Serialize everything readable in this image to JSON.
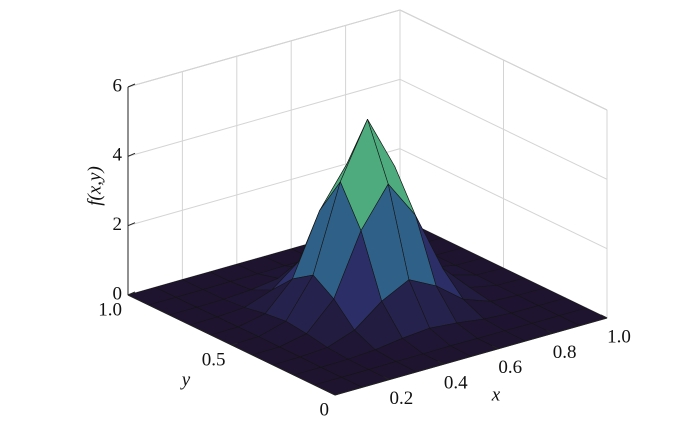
{
  "chart_data": {
    "type": "surface",
    "xlabel": "x",
    "ylabel": "y",
    "zlabel": "f(x,y)",
    "x": [
      0,
      0.1,
      0.2,
      0.3,
      0.4,
      0.5,
      0.6,
      0.7,
      0.8,
      0.9,
      1
    ],
    "y": [
      0,
      0.1,
      0.2,
      0.3,
      0.4,
      0.5,
      0.6,
      0.7,
      0.8,
      0.9,
      1
    ],
    "z": [
      [
        0,
        0,
        0,
        0,
        0,
        0,
        0,
        0,
        0,
        0,
        0
      ],
      [
        0,
        0,
        0,
        0.01,
        0.01,
        0.02,
        0.01,
        0.01,
        0,
        0,
        0
      ],
      [
        0,
        0,
        0.01,
        0.06,
        0.17,
        0.24,
        0.17,
        0.06,
        0.01,
        0,
        0
      ],
      [
        0,
        0.01,
        0.06,
        0.34,
        0.95,
        1.35,
        0.95,
        0.34,
        0.06,
        0.01,
        0
      ],
      [
        0,
        0.01,
        0.17,
        0.95,
        2.7,
        3.82,
        2.7,
        0.95,
        0.17,
        0.01,
        0
      ],
      [
        0,
        0.02,
        0.24,
        1.35,
        3.82,
        5.4,
        3.82,
        1.35,
        0.24,
        0.02,
        0
      ],
      [
        0,
        0.01,
        0.17,
        0.95,
        2.7,
        3.82,
        2.7,
        0.95,
        0.17,
        0.01,
        0
      ],
      [
        0,
        0.01,
        0.06,
        0.34,
        0.95,
        1.35,
        0.95,
        0.34,
        0.06,
        0.01,
        0
      ],
      [
        0,
        0,
        0.01,
        0.06,
        0.17,
        0.24,
        0.17,
        0.06,
        0.01,
        0,
        0
      ],
      [
        0,
        0,
        0,
        0.01,
        0.01,
        0.02,
        0.01,
        0.01,
        0,
        0,
        0
      ],
      [
        0,
        0,
        0,
        0,
        0,
        0,
        0,
        0,
        0,
        0,
        0
      ]
    ],
    "xlim": [
      0,
      1
    ],
    "ylim": [
      0,
      1
    ],
    "zlim": [
      0,
      6
    ],
    "xticks": [
      0.2,
      0.4,
      0.6,
      0.8,
      {
        "value": 1,
        "label": "1.0"
      }
    ],
    "yticks": [
      0,
      {
        "value": 0.5,
        "label": "0.5"
      },
      {
        "value": 1,
        "label": "1.0"
      }
    ],
    "zticks": [
      0,
      2,
      4,
      6
    ],
    "grid": true,
    "colormap": [
      "#1e1430",
      "#2c2d66",
      "#2f6a8e",
      "#35a08a",
      "#8cc85a",
      "#e3d83c"
    ],
    "edgecolor": "#151515"
  }
}
